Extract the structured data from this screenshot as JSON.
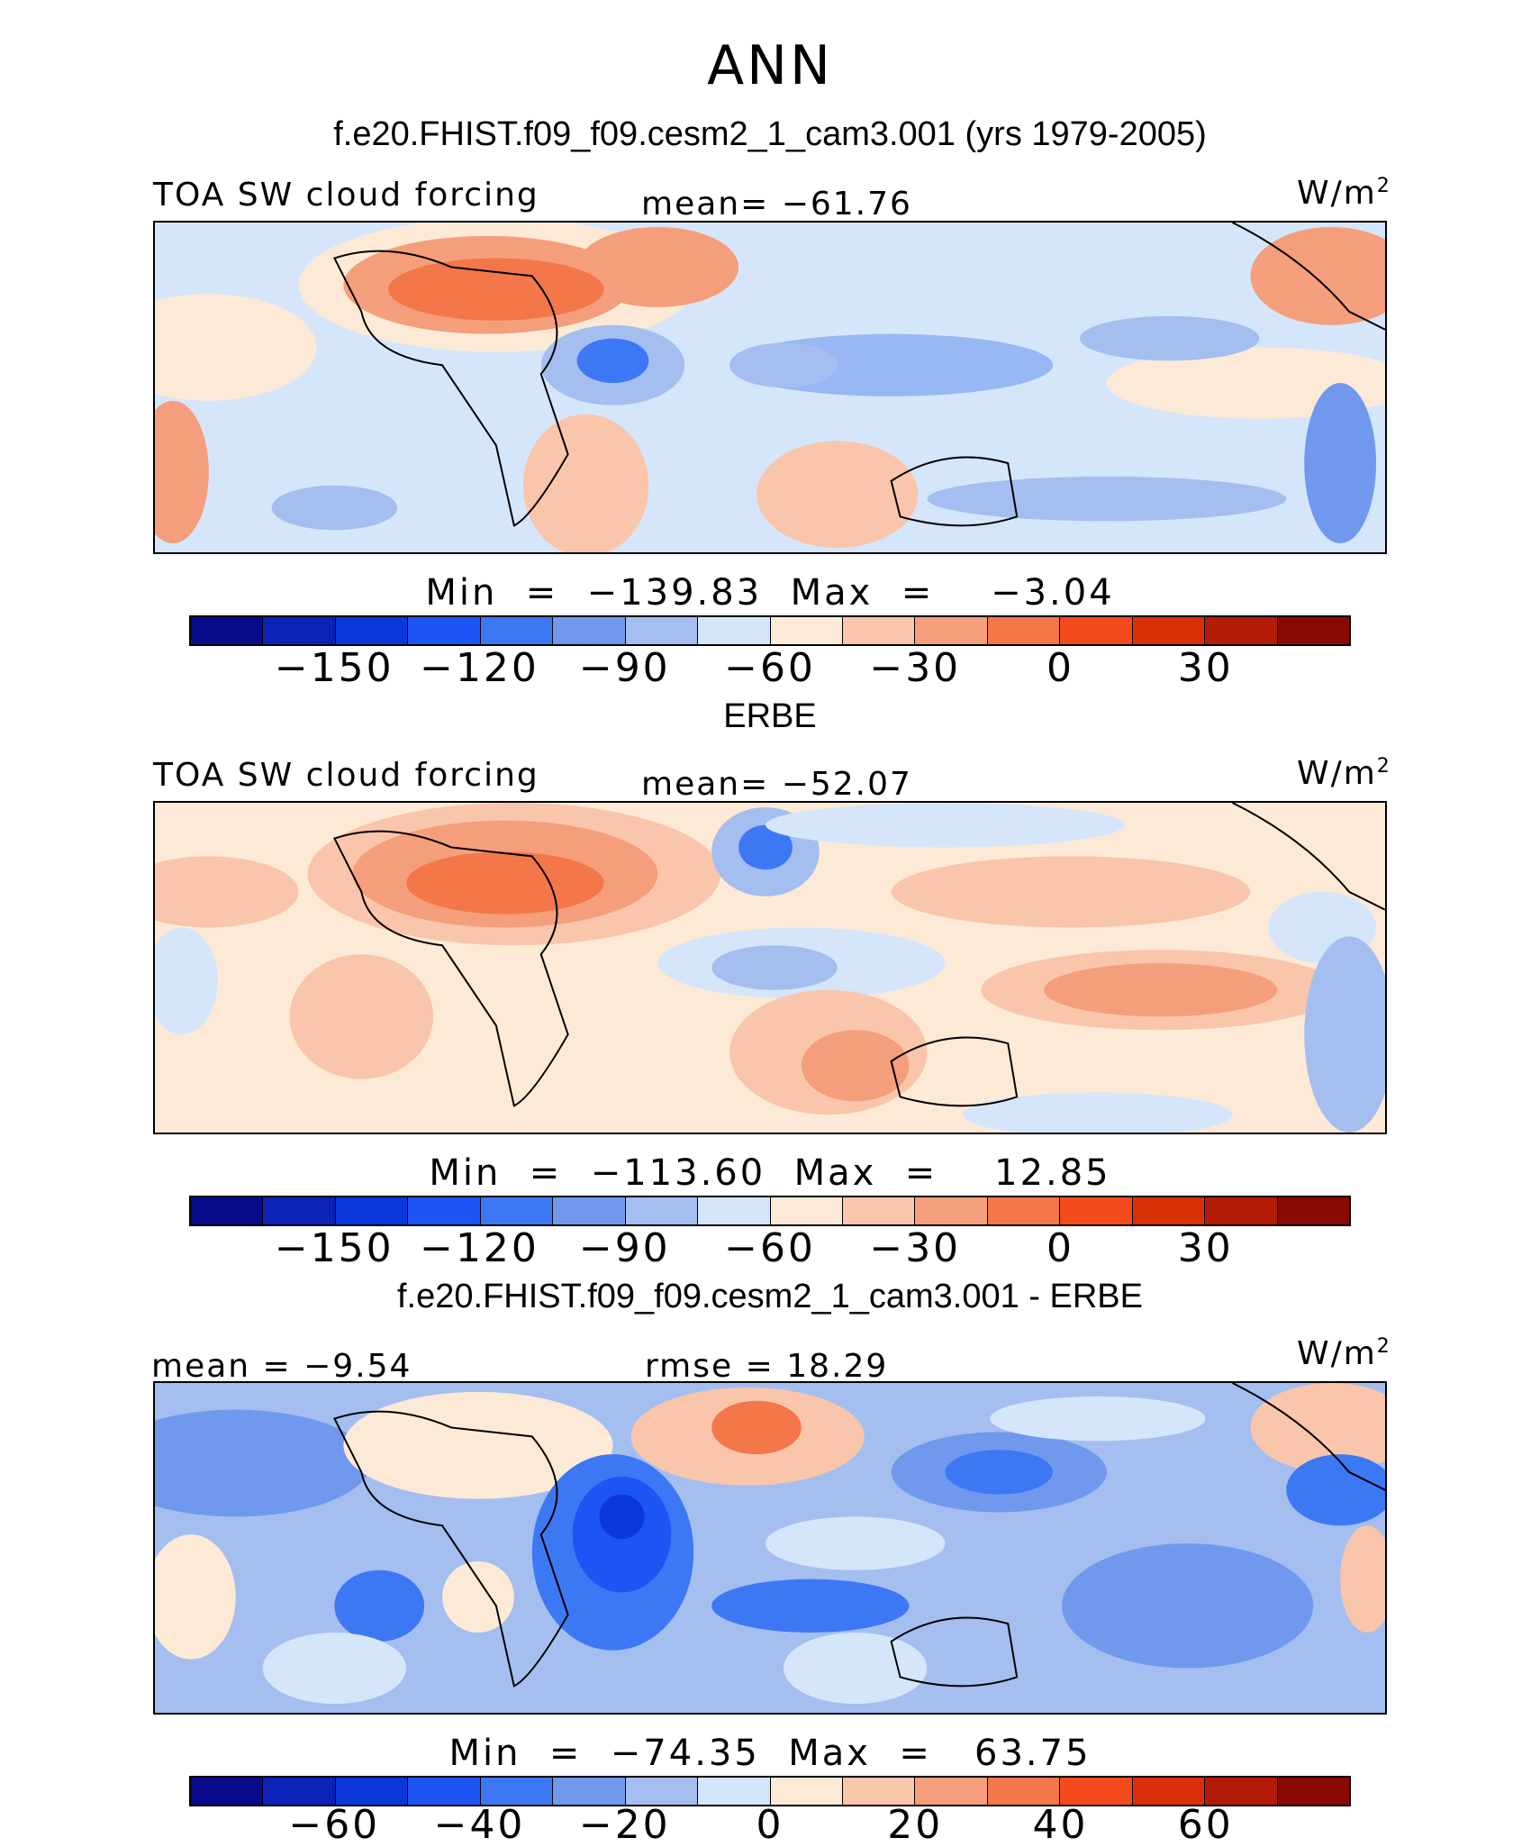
{
  "chart_data": {
    "type": "heatmap",
    "title": "ANN",
    "colorbar_colors": [
      "#080a8c",
      "#0a22b8",
      "#0a38db",
      "#1c55f4",
      "#3d78f4",
      "#7099ee",
      "#a4beef",
      "#d5e6fb",
      "#fdead6",
      "#f9c6ab",
      "#f49e7c",
      "#f47749",
      "#f44b1c",
      "#da3109",
      "#b41b07",
      "#8b0a05"
    ],
    "panels": [
      {
        "case_title": "f.e20.FHIST.f09_f09.cesm2_1_cam3.001 (yrs 1979-2005)",
        "variable": "TOA SW cloud forcing",
        "stat_text": "mean= −61.76",
        "units": "W/m",
        "units_exp": "2",
        "minmax_text": "Min  =  −139.83  Max  =    −3.04",
        "ticks": [
          "−150",
          "−120",
          "−90",
          "−60",
          "−30",
          "0",
          "30"
        ],
        "tick_boundaries": [
          2,
          4,
          6,
          8,
          10,
          12,
          14
        ]
      },
      {
        "case_title": "ERBE",
        "variable": "TOA SW cloud forcing",
        "stat_text": "mean= −52.07",
        "units": "W/m",
        "units_exp": "2",
        "minmax_text": "Min  =  −113.60  Max  =    12.85",
        "ticks": [
          "−150",
          "−120",
          "−90",
          "−60",
          "−30",
          "0",
          "30"
        ],
        "tick_boundaries": [
          2,
          4,
          6,
          8,
          10,
          12,
          14
        ]
      },
      {
        "case_title": "f.e20.FHIST.f09_f09.cesm2_1_cam3.001 - ERBE",
        "stat_left": "mean  =   −9.54",
        "stat_text": "rmse  =   18.29",
        "units": "W/m",
        "units_exp": "2",
        "minmax_text": "Min  =  −74.35  Max  =   63.75",
        "ticks": [
          "−60",
          "−40",
          "−20",
          "0",
          "20",
          "40",
          "60"
        ],
        "tick_boundaries": [
          2,
          4,
          6,
          8,
          10,
          12,
          14
        ]
      }
    ]
  }
}
